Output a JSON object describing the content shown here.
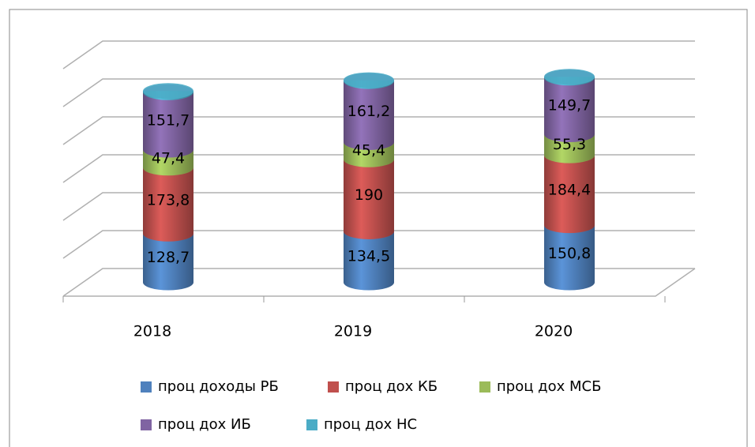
{
  "chart_data": {
    "type": "bar3d_cylinder_stacked",
    "categories": [
      "2018",
      "2019",
      "2020"
    ],
    "series": [
      {
        "name": "проц доходы РБ",
        "color": "#4f81bd",
        "values": [
          128.7,
          134.5,
          150.8
        ],
        "value_labels": [
          "128,7",
          "134,5",
          "150,8"
        ]
      },
      {
        "name": "проц дох КБ",
        "color": "#c0504d",
        "values": [
          173.8,
          190,
          184.4
        ],
        "value_labels": [
          "173,8",
          "190",
          "184,4"
        ]
      },
      {
        "name": "проц дох МСБ",
        "color": "#9bbb59",
        "values": [
          47.4,
          45.4,
          55.3
        ],
        "value_labels": [
          "47,4",
          "45,4",
          "55,3"
        ]
      },
      {
        "name": "проц дох ИБ",
        "color": "#8064a2",
        "values": [
          151.7,
          161.2,
          149.7
        ],
        "value_labels": [
          "151,7",
          "161,2",
          "149,7"
        ]
      },
      {
        "name": "проц дох НС",
        "color": "#4bacc6",
        "values": [
          3,
          2,
          2
        ]
      }
    ],
    "ylim": [
      0,
      600
    ],
    "yticks": [
      0,
      100,
      200,
      300,
      400,
      500,
      600
    ],
    "grid": true
  }
}
